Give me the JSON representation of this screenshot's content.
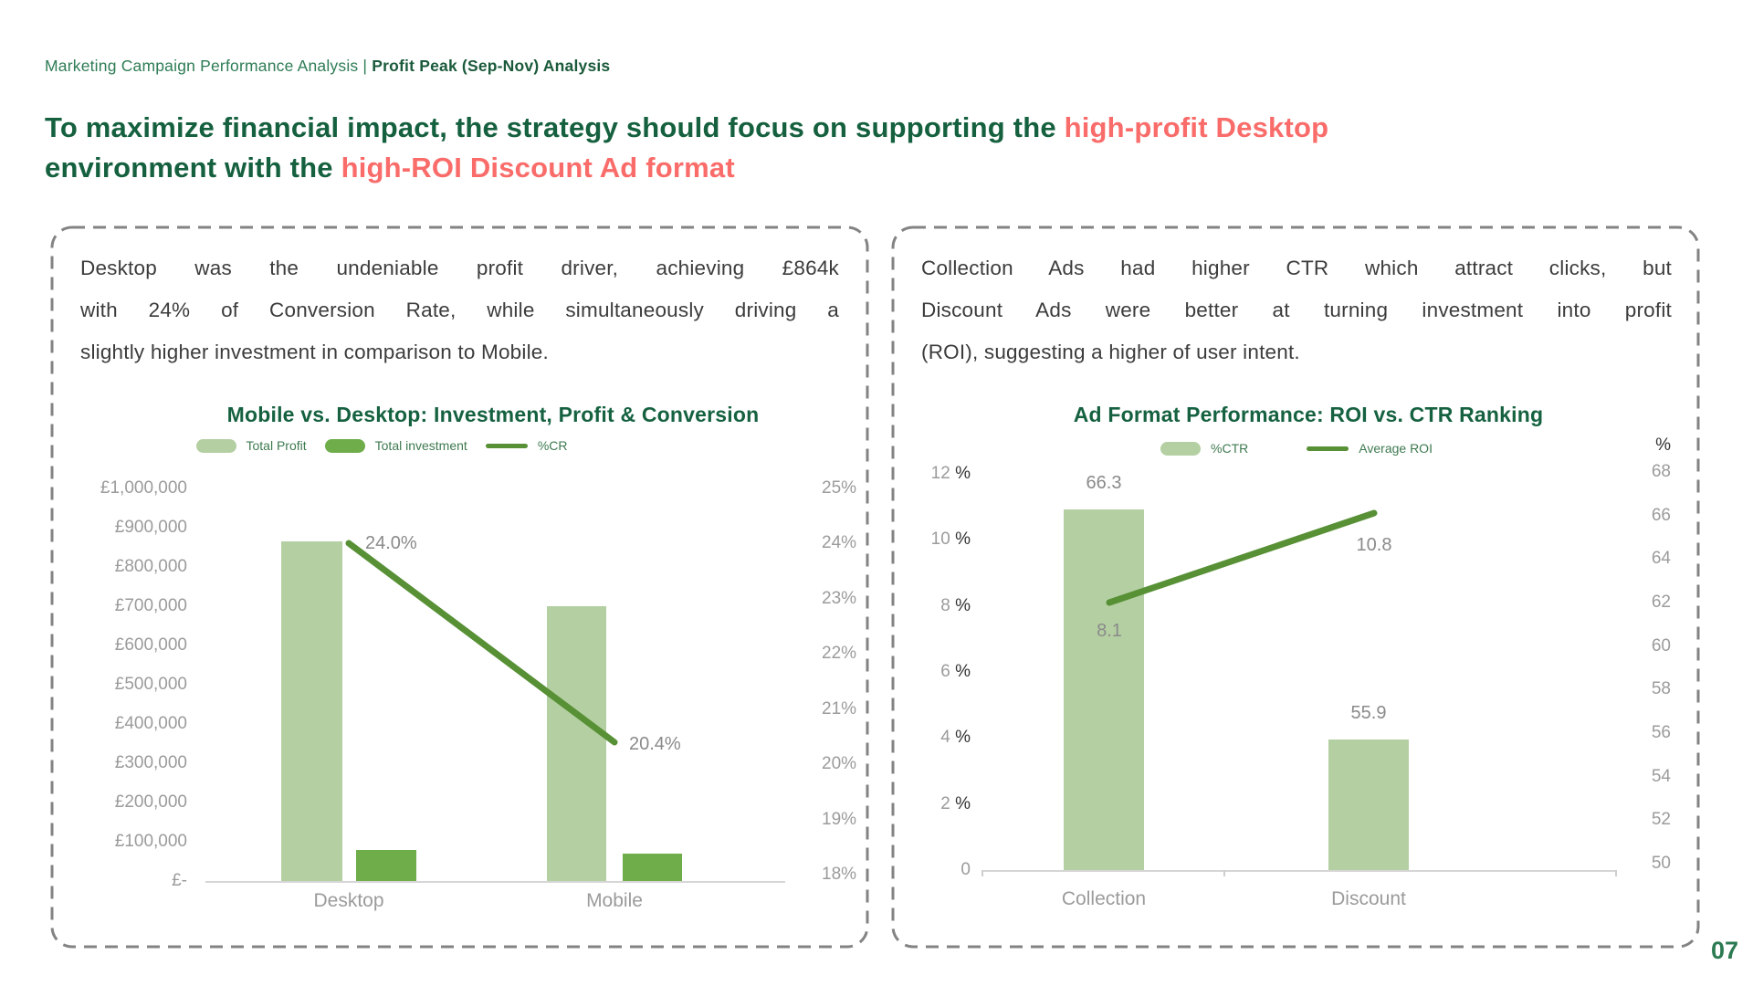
{
  "page": {
    "breadcrumb_regular": "Marketing Campaign Performance Analysis | ",
    "breadcrumb_bold": "Profit Peak (Sep-Nov) Analysis",
    "page_number": "07"
  },
  "title": {
    "line1_green": "To maximize financial impact, the strategy should focus on supporting the ",
    "line1_red": "high-profit Desktop",
    "line2_green": "environment with the ",
    "line2_red": "high-ROI Discount Ad format"
  },
  "left_panel": {
    "body_lines": [
      "Desktop was the undeniable profit driver, achieving £864k",
      "with 24% of Conversion Rate, while simultaneously driving a",
      "slightly higher investment in comparison to Mobile."
    ]
  },
  "right_panel": {
    "body_lines": [
      "Collection Ads had higher CTR which attract clicks, but",
      "Discount Ads were better at turning investment into profit",
      "(ROI), suggesting a higher of user intent."
    ]
  },
  "chart_data": [
    {
      "type": "bar",
      "title": "Mobile vs. Desktop: Investment, Profit & Conversion",
      "categories": [
        "Desktop",
        "Mobile"
      ],
      "series": [
        {
          "name": "Total Profit",
          "kind": "bar",
          "axis": "left",
          "values": [
            864000,
            700000
          ]
        },
        {
          "name": "Total investment",
          "kind": "bar",
          "axis": "left",
          "values": [
            80000,
            70000
          ]
        },
        {
          "name": "%CR",
          "kind": "line",
          "axis": "right",
          "values": [
            24.0,
            20.4
          ],
          "labels": [
            "24.0%",
            "20.4%"
          ]
        }
      ],
      "left_axis": {
        "ticks": [
          "£1,000,000",
          "£900,000",
          "£800,000",
          "£700,000",
          "£600,000",
          "£500,000",
          "£400,000",
          "£300,000",
          "£200,000",
          "£100,000",
          "£-"
        ],
        "range": [
          0,
          1000000
        ]
      },
      "right_axis": {
        "ticks": [
          "25%",
          "24%",
          "23%",
          "22%",
          "21%",
          "20%",
          "19%",
          "18%"
        ],
        "range": [
          25,
          18
        ]
      },
      "legend": [
        "Total Profit",
        "Total investment",
        "%CR"
      ],
      "grid": false,
      "legend_position": "top-center"
    },
    {
      "type": "bar",
      "title": "Ad Format Performance: ROI vs. CTR Ranking",
      "categories": [
        "Collection",
        "Discount"
      ],
      "series": [
        {
          "name": "%CTR",
          "kind": "bar",
          "axis": "right",
          "values": [
            66.3,
            55.9
          ],
          "labels": [
            "66.3",
            "55.9"
          ]
        },
        {
          "name": "Average ROI",
          "kind": "line",
          "axis": "left",
          "values": [
            8.1,
            10.8
          ],
          "labels": [
            "8.1",
            "10.8"
          ]
        }
      ],
      "left_axis": {
        "ticks": [
          "12",
          "10",
          "8",
          "6",
          "4",
          "2",
          "0"
        ],
        "unit": "%",
        "range": [
          0,
          12
        ]
      },
      "right_axis": {
        "unit": "%",
        "ticks": [
          "68",
          "66",
          "64",
          "62",
          "60",
          "58",
          "56",
          "54",
          "52",
          "50"
        ],
        "range": [
          68,
          50
        ]
      },
      "legend": [
        "%CTR",
        "Average ROI"
      ],
      "grid": false,
      "legend_position": "top-center"
    }
  ],
  "colors": {
    "header_green": "#2e7c55",
    "header_green_dark": "#1b5a3b",
    "title_green": "#15603e",
    "highlight_red": "#f96c6a",
    "chart_title_green": "#156140",
    "legend_text_green": "#3e7a50",
    "bar_light_green": "#b4cfa2",
    "bar_dark_green": "#6ead4a",
    "line_green": "#579035",
    "axis_gray": "#9b9b9b",
    "data_label_gray": "#8a8a8a",
    "body_text": "#3c3c3c",
    "panel_border_gray": "#838383",
    "baseline_gray": "#d6d6d6",
    "page_number_green": "#2c7a52"
  }
}
